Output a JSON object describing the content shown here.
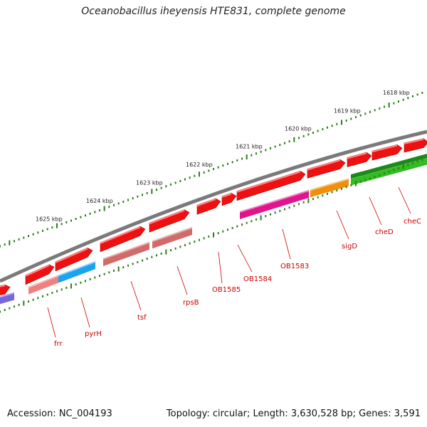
{
  "title": "Oceanobacillus iheyensis HTE831, complete genome",
  "footer": {
    "accession": "Accession: NC_004193",
    "summary": "Topology: circular; Length: 3,630,528 bp; Genes: 3,591"
  },
  "colors": {
    "backbone": "#7a7a7a",
    "tick": "#2f7d1e",
    "label": "#cc0000",
    "gene_red": "#ee1111",
    "gene_salmon": "#f08080",
    "gene_blue": "#1aa3ee",
    "gene_rosybrown": "#d36a6a",
    "gene_magenta": "#e0148c",
    "gene_orange": "#f0900a",
    "gene_green": "#33bb22",
    "gene_darkgreen": "#1a8a1a",
    "gene_purple": "#7766dd"
  },
  "scale_labels": [
    "1625 kbp",
    "1624 kbp",
    "1623 kbp",
    "1622 kbp",
    "1621 kbp",
    "1620 kbp",
    "1619 kbp",
    "1618 kbp"
  ],
  "genes": [
    {
      "name": "frr",
      "color": "gene_salmon"
    },
    {
      "name": "pyrH",
      "color": "gene_blue"
    },
    {
      "name": "tsf",
      "color": "gene_rosybrown"
    },
    {
      "name": "rpsB",
      "color": "gene_rosybrown"
    },
    {
      "name": "OB1585",
      "color": "gene_red"
    },
    {
      "name": "OB1584",
      "color": "gene_red"
    },
    {
      "name": "OB1583",
      "color": "gene_magenta"
    },
    {
      "name": "sigD",
      "color": "gene_orange"
    },
    {
      "name": "cheD",
      "color": "gene_green"
    },
    {
      "name": "cheC",
      "color": "gene_green"
    }
  ]
}
